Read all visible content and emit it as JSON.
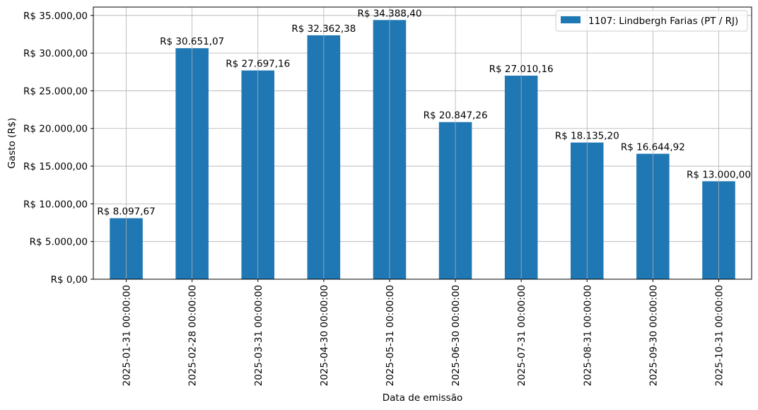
{
  "chart_data": {
    "type": "bar",
    "xlabel": "Data de emissão",
    "ylabel": "Gasto (R$)",
    "categories": [
      "2025-01-31 00:00:00",
      "2025-02-28 00:00:00",
      "2025-03-31 00:00:00",
      "2025-04-30 00:00:00",
      "2025-05-31 00:00:00",
      "2025-06-30 00:00:00",
      "2025-07-31 00:00:00",
      "2025-08-31 00:00:00",
      "2025-09-30 00:00:00",
      "2025-10-31 00:00:00"
    ],
    "series": [
      {
        "name": "1107: Lindbergh Farias (PT / RJ)",
        "color": "#1f77b4",
        "values": [
          8097.67,
          30651.07,
          27697.16,
          32362.38,
          34388.4,
          20847.26,
          27010.16,
          18135.2,
          16644.92,
          13000.0
        ],
        "labels": [
          "R$ 8.097,67",
          "R$ 30.651,07",
          "R$ 27.697,16",
          "R$ 32.362,38",
          "R$ 34.388,40",
          "R$ 20.847,26",
          "R$ 27.010,16",
          "R$ 18.135,20",
          "R$ 16.644,92",
          "R$ 13.000,00"
        ]
      }
    ],
    "ylim": [
      0,
      36107.82
    ],
    "yticks": [
      0,
      5000,
      10000,
      15000,
      20000,
      25000,
      30000,
      35000
    ],
    "ytick_labels": [
      "R$ 0,00",
      "R$ 5.000,00",
      "R$ 10.000,00",
      "R$ 15.000,00",
      "R$ 20.000,00",
      "R$ 25.000,00",
      "R$ 30.000,00",
      "R$ 35.000,00"
    ],
    "grid": true,
    "legend_position": "top-right"
  }
}
